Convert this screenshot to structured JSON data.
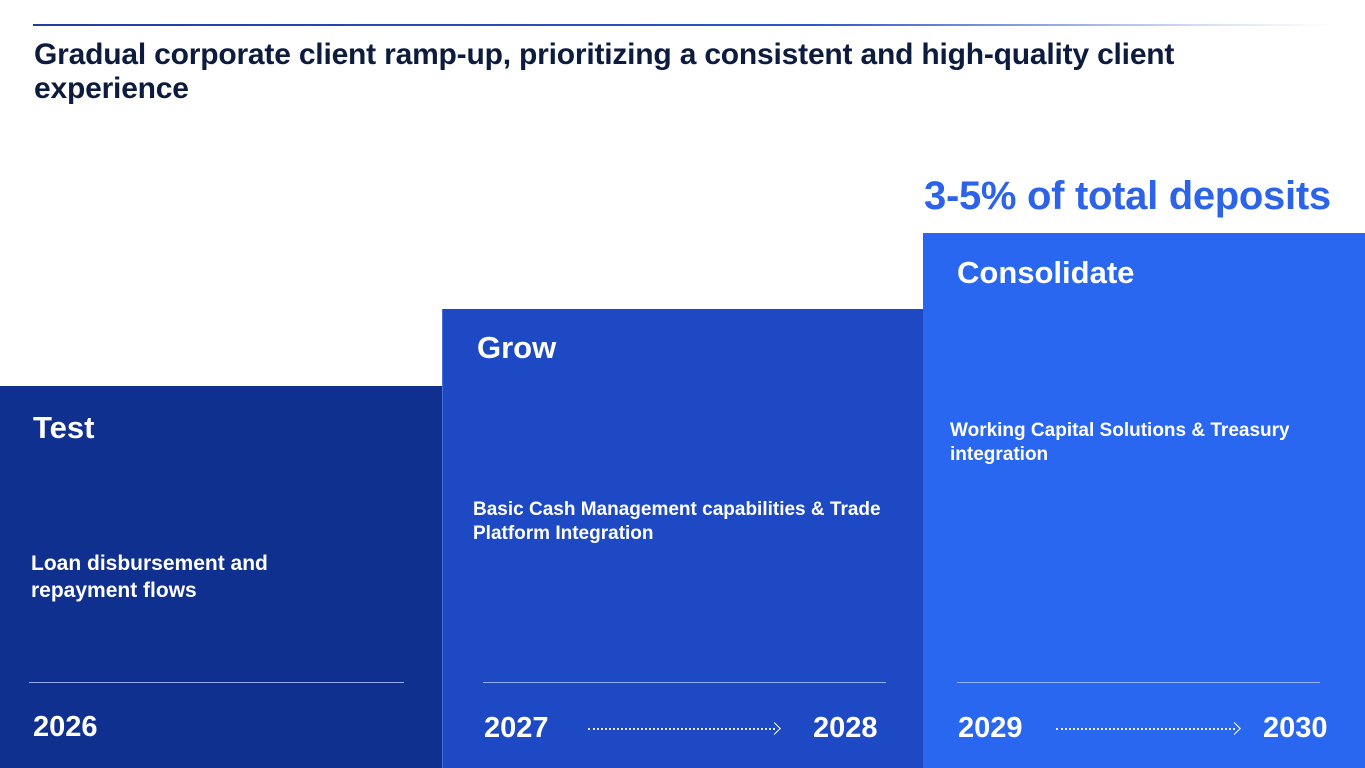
{
  "slide": {
    "title_prefix": "Gradual ",
    "title_emphasis": "corporate",
    "title_suffix": " client ramp-up, prioritizing a consistent and high-quality client experience",
    "target": "3-5% of total deposits"
  },
  "phases": {
    "test": {
      "name": "Test",
      "description": "Loan disbursement and repayment flows",
      "year": "2026"
    },
    "grow": {
      "name": "Grow",
      "description": "Basic Cash Management capabilities & Trade Platform Integration",
      "year_start": "2027",
      "year_end": "2028"
    },
    "consolidate": {
      "name": "Consolidate",
      "description": "Working Capital Solutions & Treasury integration",
      "year_start": "2029",
      "year_end": "2030"
    }
  },
  "colors": {
    "title_text": "#0d1b3e",
    "accent": "#2c63e8",
    "test_block": "#10308f",
    "grow_block": "#1e49c4",
    "consolidate_block": "#2967f0"
  }
}
